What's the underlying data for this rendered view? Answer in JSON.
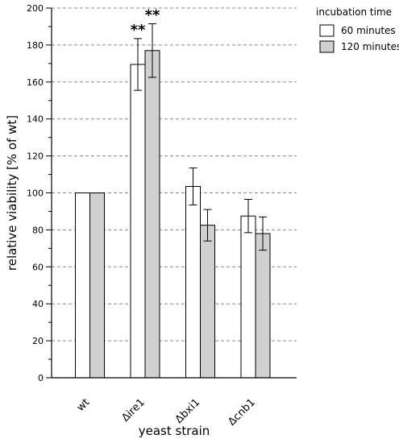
{
  "chart_data": {
    "type": "bar",
    "categories": [
      "wt",
      "Δire1",
      "Δbxi1",
      "Δcnb1"
    ],
    "series": [
      {
        "name": "60 minutes",
        "color": "#ffffff",
        "values": [
          100,
          169.5,
          103.5,
          87.5
        ],
        "errors": [
          0,
          14,
          10,
          9
        ]
      },
      {
        "name": "120 minutes",
        "color": "#d0d0d0",
        "values": [
          100,
          177,
          82.5,
          78
        ],
        "errors": [
          0,
          14.5,
          8.5,
          9
        ]
      }
    ],
    "annotations": [
      {
        "category": "Δire1",
        "series": 0,
        "text": "**"
      },
      {
        "category": "Δire1",
        "series": 1,
        "text": "**"
      }
    ],
    "xlabel": "yeast strain",
    "ylabel": "relative viability [% of wt]",
    "ylim": [
      0,
      200
    ],
    "yticks": [
      0,
      20,
      40,
      60,
      80,
      100,
      120,
      140,
      160,
      180,
      200
    ],
    "grid": "horizontal-dashed",
    "legend": {
      "title": "incubation time",
      "placement": "top-right"
    }
  }
}
